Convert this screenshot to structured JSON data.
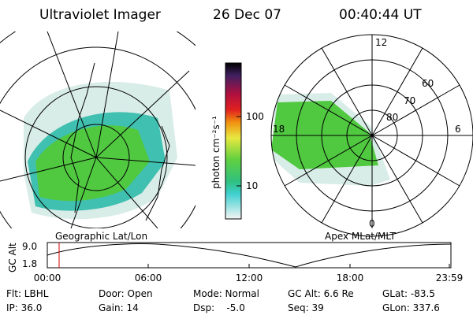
{
  "header": {
    "title": "Ultraviolet Imager",
    "date": "26 Dec 07",
    "time": "00:40:44 UT"
  },
  "colorbar": {
    "label": "photon cm⁻²s⁻¹",
    "ticks": [
      "100",
      "10"
    ]
  },
  "maps": {
    "left_label": "Geographic Lat/Lon",
    "right_label": "Apex MLat/MLT",
    "polar_labels": {
      "top": "12",
      "bottom": "0",
      "left": "18",
      "right": "6",
      "ring1": "60",
      "ring2": "70",
      "ring3": "80"
    }
  },
  "alt_plot": {
    "label": "GC Alt",
    "yticks": [
      "9.0",
      "1.8"
    ],
    "xticks": [
      "00:00",
      "06:00",
      "12:00",
      "18:00",
      "23:59"
    ]
  },
  "info": {
    "rows": [
      [
        "Flt: LBHL",
        "Door: Open",
        "Mode: Normal",
        "GC Alt: 6.6 Re",
        "GLat: -83.5"
      ],
      [
        "IP: 36.0",
        "Gain: 14",
        "Dsp:    -5.0",
        "Seq: 39",
        "GLon: 337.6"
      ]
    ]
  }
}
